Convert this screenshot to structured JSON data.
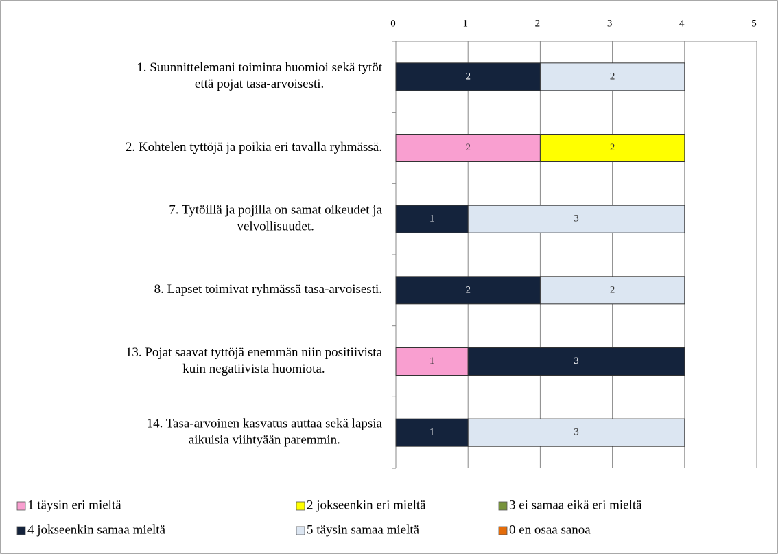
{
  "chart_data": {
    "type": "stacked-bar-horizontal",
    "categories": [
      [
        "1. Suunnittelemani toiminta huomioi sekä tytöt",
        "että pojat tasa-arvoisesti."
      ],
      [
        "2. Kohtelen tyttöjä ja poikia eri tavalla ryhmässä."
      ],
      [
        "7. Tytöillä ja pojilla on samat oikeudet ja",
        "velvollisuudet."
      ],
      [
        "8. Lapset toimivat ryhmässä tasa-arvoisesti."
      ],
      [
        "13. Pojat saavat tyttöjä enemmän niin positiivista",
        "kuin negatiivista huomiota."
      ],
      [
        "14. Tasa-arvoinen kasvatus auttaa sekä lapsia",
        "aikuisia viihtyään paremmin."
      ]
    ],
    "series": [
      {
        "name": "1 täysin eri mieltä",
        "color": "#f99fd0",
        "label_color": "#333333",
        "values": [
          0,
          2,
          0,
          0,
          1,
          0
        ]
      },
      {
        "name": "2 jokseenkin eri mieltä",
        "color": "#ffff00",
        "label_color": "#333333",
        "values": [
          0,
          2,
          0,
          0,
          0,
          0
        ]
      },
      {
        "name": "3 ei samaa eikä eri mieltä",
        "color": "#77933c",
        "label_color": "#ffffff",
        "values": [
          0,
          0,
          0,
          0,
          0,
          0
        ]
      },
      {
        "name": "4 jokseenkin samaa mieltä",
        "color": "#14233c",
        "label_color": "#ffffff",
        "values": [
          2,
          0,
          1,
          2,
          3,
          1
        ]
      },
      {
        "name": "5 täysin samaa mieltä",
        "color": "#dce6f2",
        "label_color": "#333333",
        "values": [
          2,
          0,
          3,
          2,
          0,
          3
        ]
      },
      {
        "name": "0 en osaa sanoa",
        "color": "#e46c0a",
        "label_color": "#ffffff",
        "values": [
          0,
          0,
          0,
          0,
          0,
          0
        ]
      }
    ],
    "xlim": [
      0,
      5
    ],
    "xticks": [
      0,
      1,
      2,
      3,
      4,
      5
    ],
    "grid": true,
    "legend": "bottom"
  }
}
